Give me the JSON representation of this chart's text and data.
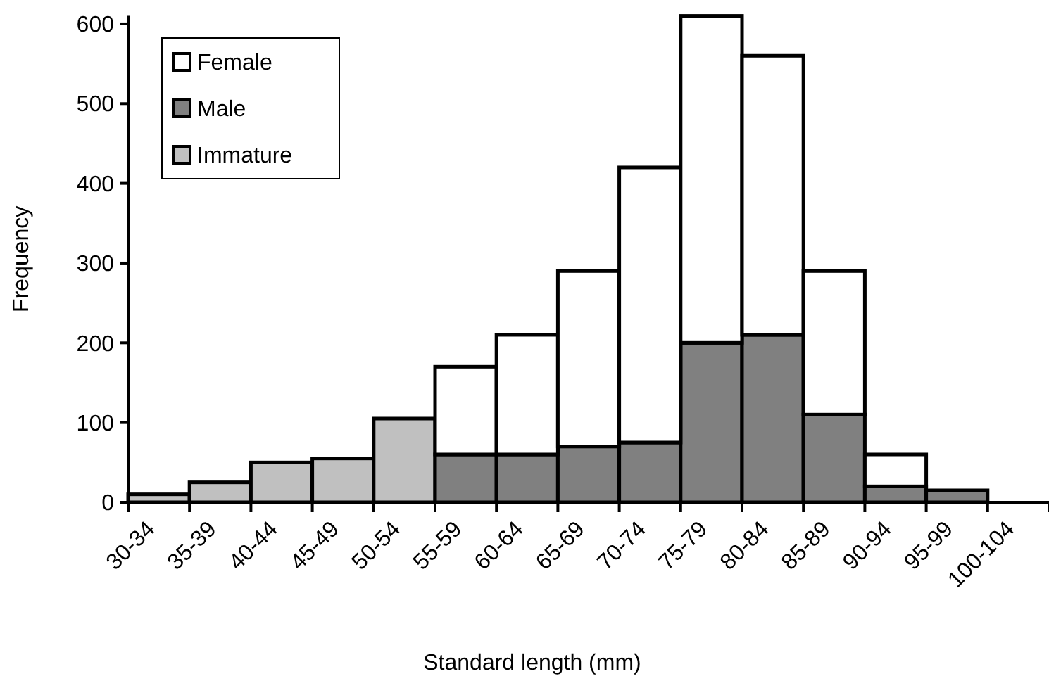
{
  "chart_data": {
    "type": "bar",
    "stacked": true,
    "xlabel": "Standard length (mm)",
    "ylabel": "Frequency",
    "categories": [
      "30-34",
      "35-39",
      "40-44",
      "45-49",
      "50-54",
      "55-59",
      "60-64",
      "65-69",
      "70-74",
      "75-79",
      "80-84",
      "85-89",
      "90-94",
      "95-99",
      "100-104"
    ],
    "series": [
      {
        "name": "Immature",
        "color": "#c0c0c0",
        "values": [
          10,
          25,
          50,
          55,
          105,
          0,
          0,
          0,
          0,
          0,
          0,
          0,
          0,
          0,
          0
        ]
      },
      {
        "name": "Male",
        "color": "#808080",
        "values": [
          0,
          0,
          0,
          0,
          0,
          60,
          60,
          70,
          75,
          200,
          210,
          110,
          20,
          15,
          0
        ]
      },
      {
        "name": "Female",
        "color": "#ffffff",
        "values": [
          0,
          0,
          0,
          0,
          0,
          110,
          150,
          220,
          345,
          410,
          350,
          180,
          40,
          0,
          0
        ]
      }
    ],
    "ylim": [
      0,
      610
    ],
    "yticks": [
      0,
      100,
      200,
      300,
      400,
      500,
      600
    ],
    "grid": false,
    "legend": "top left"
  }
}
